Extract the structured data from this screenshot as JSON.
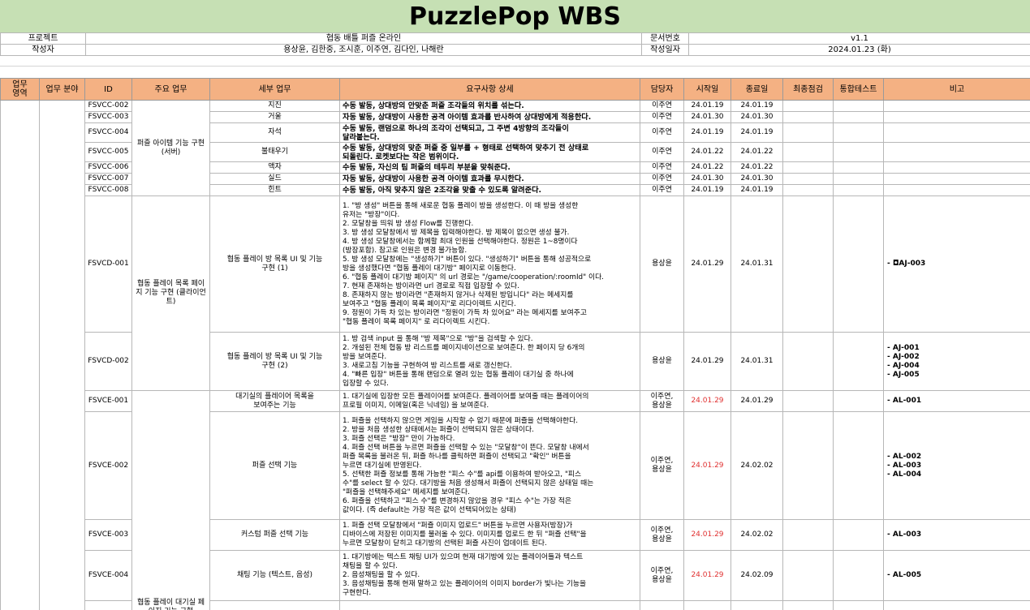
{
  "title": "PuzzlePop WBS",
  "meta": {
    "project_label": "프로젝트",
    "project_value": "협동 배틀 퍼즐 온라인",
    "doc_label": "문서번호",
    "doc_value": "v1.1",
    "author_label": "작성자",
    "author_value": "용상윤, 김한중, 조시훈, 이주연, 김다인, 나해란",
    "date_label": "작성일자",
    "date_value": "2024.01.23 (화)"
  },
  "headers": {
    "area": "업무\n영역",
    "field": "업무 분야",
    "id": "ID",
    "main": "주요 업무",
    "detail": "세부 업무",
    "req": "요구사항 상세",
    "owner": "담당자",
    "start": "시작일",
    "end": "종료일",
    "final": "최종점검",
    "integ": "통합테스트",
    "note": "비고"
  },
  "groups": {
    "item_server": "퍼즐 아이템 기능 구현 (서버)",
    "coop_list": "협동 플레이 목록 페이지 기능 구현 (클라이언트)",
    "waiting": "협동 플레이 대기실 페이지 기능 구현"
  },
  "rows": [
    {
      "id": "FSVCC-002",
      "detail": "지진",
      "req": "수동 발동, 상대방의 안맞춘 퍼즐 조각들의 위치를 섞는다.",
      "owner": "이주연",
      "start": "24.01.19",
      "end": "24.01.19",
      "note": ""
    },
    {
      "id": "FSVCC-003",
      "detail": "거울",
      "req": "자동 발동, 상대방이 사용한 공격 아이템 효과를 반사하여 상대방에게 적용한다.",
      "owner": "이주연",
      "start": "24.01.30",
      "end": "24.01.30",
      "note": ""
    },
    {
      "id": "FSVCC-004",
      "detail": "자석",
      "req": "수동 발동, 랜덤으로 하나의 조각이 선택되고, 그 주변 4방향의 조각들이\n달라붙는다.",
      "owner": "이주연",
      "start": "24.01.19",
      "end": "24.01.19",
      "note": ""
    },
    {
      "id": "FSVCC-005",
      "detail": "불태우기",
      "req": "수동 발동, 상대방의 맞춘 퍼즐 중 일부를 + 형태로 선택하여 맞추기 전 상태로\n되돌린다. 로켓보다는 작은 범위이다.",
      "owner": "이주연",
      "start": "24.01.22",
      "end": "24.01.22",
      "note": ""
    },
    {
      "id": "FSVCC-006",
      "detail": "액자",
      "req": "수동 발동, 자신의 팀 퍼즐의 테두리 부분을 맞춰준다.",
      "owner": "이주연",
      "start": "24.01.22",
      "end": "24.01.22",
      "note": ""
    },
    {
      "id": "FSVCC-007",
      "detail": "실드",
      "req": "자동 발동, 상대방이 사용한 공격 아이템 효과를 무시한다.",
      "owner": "이주연",
      "start": "24.01.30",
      "end": "24.01.30",
      "note": ""
    },
    {
      "id": "FSVCC-008",
      "detail": "힌트",
      "req": "수동 발동, 아직 맞추지 않은 2조각을 맞출 수 있도록 알려준다.",
      "owner": "이주연",
      "start": "24.01.19",
      "end": "24.01.19",
      "note": ""
    },
    {
      "id": "FSVCD-001",
      "detail": "협동 플레이 방 목록 UI 및 기능\n구현 (1)",
      "req": "1. \"방 생성\" 버튼을 통해 새로운 협동 플레이 방을 생성한다. 이 때 방을 생성한\n유저는 \"방장\"이다.\n2. 모달창을 띄워 방 생성 Flow를 진행한다.\n3. 방 생성 모달창에서 방 제목을 입력해야한다. 방 제목이 없으면 생성 불가.\n4. 방 생성 모달창에서는 함께할 최대 인원을 선택해야한다. 정원은 1~8명이다\n(방장포함). 참고로 인원은 변경 불가능함.\n5. 방 생성 모달창에는 \"생성하기\" 버튼이 있다. \"생성하기\" 버튼을 통해 성공적으로\n방을 생성했다면 \"협동 플레이 대기방\" 페이지로 이동한다.\n6. \"협동 플레이 대기방 페이지\" 의 url 경로는 \"/game/cooperation/:roomId\" 이다.\n7. 현재 존재하는 방이라면 url 경로로 직접 입장할 수 있다.\n8. 존재하지 않는 방이라면 \"존재하지 않거나 삭제된 방입니다\" 라는 메세지를\n보여주고 \"협동 플레이 목록 페이지\"로 리다이렉트 시킨다.\n9. 정원이 가득 차 있는 방이라면 \"정원이 가득 차 있어요\" 라는 메세지를 보여주고\n\"협동 플레이 목록 페이지\" 로 리다이렉트 시킨다.",
      "owner": "용상윤",
      "start": "24.01.29",
      "end": "24.01.31",
      "note": "- ◘AJ-003"
    },
    {
      "id": "FSVCD-002",
      "detail": "협동 플레이 방 목록 UI 및 기능\n구현 (2)",
      "req": "1. 방 검색 input 을 통해 \"방 제목\"으로 \"방\"을 검색할 수 있다.\n2. 개설된 전체 협동 방 리스트를 페이지네이션으로 보여준다. 한 페이지 당 6개의\n방을 보여준다.\n3. 새로고침 기능을 구현하여 방 리스트를 새로 갱신한다.\n4. \"빠른 입장\" 버튼을 통해 랜덤으로 열려 있는 협동 플레이 대기실 중 하나에\n입장할 수 있다.",
      "owner": "용상윤",
      "start": "24.01.29",
      "end": "24.01.31",
      "note": "- AJ-001\n- AJ-002\n- AJ-004\n- AJ-005"
    },
    {
      "id": "FSVCE-001",
      "detail": "대기실의 플레이어 목록을\n보여주는 기능",
      "req": "1. 대기실에 입장한 모든 플레이어를 보여준다. 플레이어를 보여줄 때는 플레이어의\n프로필 이미지, 이메일(혹은 닉네임) 을 보여준다.",
      "owner": "이주연,\n용상윤",
      "start": "24.01.29",
      "end": "24.01.29",
      "note": "- AL-001",
      "red": true
    },
    {
      "id": "FSVCE-002",
      "detail": "퍼즐 선택 기능",
      "req": "1. 퍼즐을 선택하지 않으면 게임을 시작할 수 없기 때문에 퍼즐을 선택해야한다.\n2. 방을 처음 생성한 상태에서는 퍼즐이 선택되지 않은 상태이다.\n3. 퍼즐 선택은 \"방장\" 만이 가능하다.\n4. 퍼즐 선택 버튼을 누르면 퍼즐을 선택할 수 있는 \"모달창\"이 뜬다. 모달창 내에서\n퍼즐 목록을 불러온 뒤, 퍼즐 하나를 클릭하면 퍼즐이 선택되고 \"확인\" 버튼을\n누르면 대기실에 반영된다.\n5. 선택한 퍼즐 정보를 통해 가능한 \"피스 수\"를 api를 이용하여 받아오고, \"피스\n수\"를 select 할 수 있다. 대기방을 처음 생성해서 퍼즐이 선택되지 않은 상태일 때는\n\"퍼즐을 선택해주세요\" 메세지를 보여준다.\n6. 퍼즐을 선택하고 \"피스 수\"를 변경하지 않았을 경우 \"피스 수\"는 가장 적은\n값이다. (즉 default는 가장 적은 값이 선택되어있는 상태)",
      "owner": "이주연,\n용상윤",
      "start": "24.01.29",
      "end": "24.02.02",
      "note": "- AL-002\n- AL-003\n- AL-004",
      "red": true
    },
    {
      "id": "FSVCE-003",
      "detail": "커스텀 퍼즐 선택 기능",
      "req": "1. 퍼즐 선택 모달창에서 \"퍼즐 이미지 업로드\" 버튼을 누르면 사용자(방장)가\n디바이스에 저장된 이미지를 불러올 수 있다. 이미지를 업로드 한 뒤 \"퍼즐 선택\"을\n누르면 모달창이 닫히고 대기방의 선택된 퍼즐 사진이 업데이트 된다.",
      "owner": "이주연,\n용상윤",
      "start": "24.01.29",
      "end": "24.02.02",
      "note": "- AL-003",
      "red": true
    },
    {
      "id": "FSVCE-004",
      "detail": "채팅 기능 (텍스트, 음성)",
      "req": "1. 대기방에는 텍스트 채팅 UI가 있으며 현재 대기방에 있는 플레이어들과 텍스트\n채팅을 할 수 있다.\n2. 음성채팅을 할 수 있다.\n3. 음성채팅을 통해 현재 말하고 있는 플레이어의 이미지 border가 빛나는 기능을\n구현한다.",
      "owner": "이주연,\n용상윤",
      "start": "24.01.29",
      "end": "24.02.09",
      "note": "- AL-005",
      "red": true
    }
  ]
}
